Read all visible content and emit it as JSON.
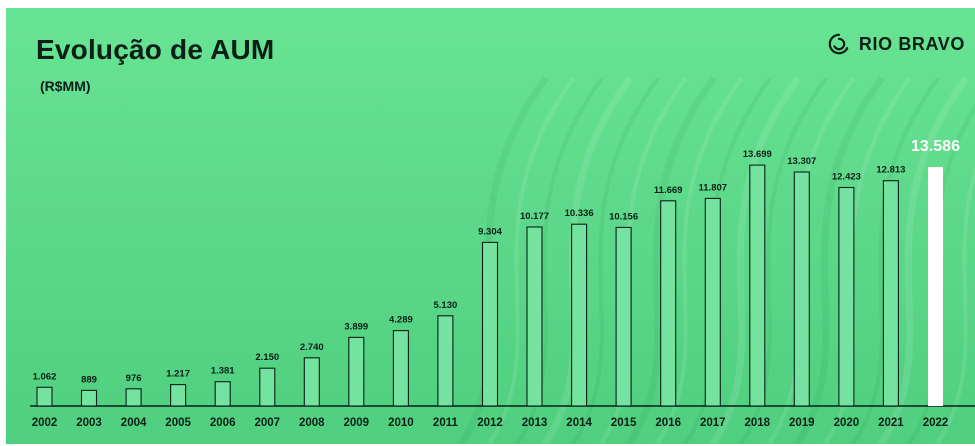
{
  "brand": {
    "name": "RIO BRAVO"
  },
  "colors": {
    "background": "#5ed98b",
    "bar_fill": "#73e39f",
    "bar_stroke": "#0b1f17",
    "highlight_bar": "#ffffff",
    "text": "#0b1f17",
    "highlight_text": "#ffffff"
  },
  "chart_data": {
    "type": "bar",
    "title": "Evolução de AUM",
    "subtitle": "(R$MM)",
    "categories": [
      "2002",
      "2003",
      "2004",
      "2005",
      "2006",
      "2007",
      "2008",
      "2009",
      "2010",
      "2011",
      "2012",
      "2013",
      "2014",
      "2015",
      "2016",
      "2017",
      "2018",
      "2019",
      "2020",
      "2021",
      "2022"
    ],
    "values": [
      1062,
      889,
      976,
      1217,
      1381,
      2150,
      2740,
      3899,
      4289,
      5130,
      9304,
      10177,
      10336,
      10156,
      11669,
      11807,
      13699,
      13307,
      12423,
      12813,
      13586
    ],
    "value_labels": [
      "1.062",
      "889",
      "976",
      "1.217",
      "1.381",
      "2.150",
      "2.740",
      "3.899",
      "4.289",
      "5.130",
      "9.304",
      "10.177",
      "10.336",
      "10.156",
      "11.669",
      "11.807",
      "13.699",
      "13.307",
      "12.423",
      "12.813",
      "13.586"
    ],
    "highlight_index": 20,
    "xlabel": "",
    "ylabel": "",
    "ylim": [
      0,
      14500
    ],
    "grid": false,
    "legend": "none"
  }
}
